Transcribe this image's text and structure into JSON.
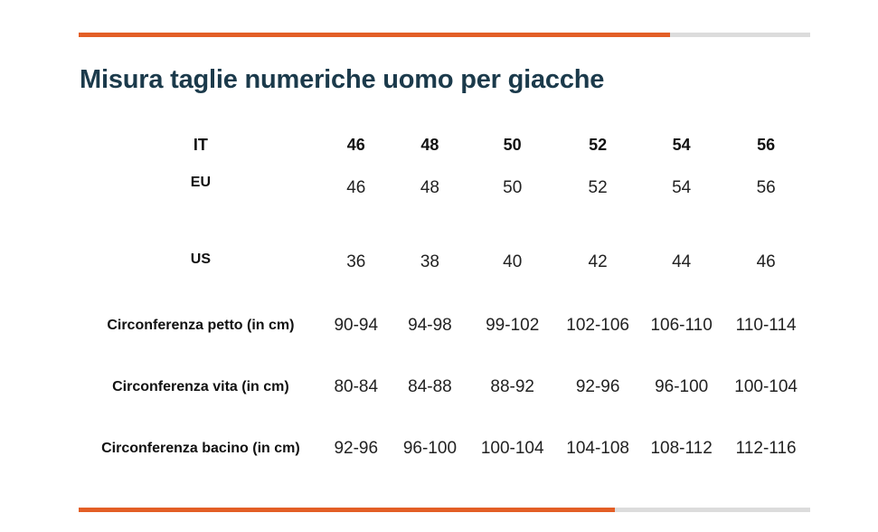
{
  "title": "Misura taglie numeriche uomo per giacche",
  "colors": {
    "accent": "#e35f26",
    "track": "#dcdcdc",
    "title": "#1b3a4b"
  },
  "scroll": {
    "top_position": 0.81,
    "bottom_position": 0.73
  },
  "table": {
    "header": {
      "label": "IT",
      "values": [
        "46",
        "48",
        "50",
        "52",
        "54",
        "56"
      ]
    },
    "rows": [
      {
        "label": "EU",
        "values": [
          "46",
          "48",
          "50",
          "52",
          "54",
          "56"
        ]
      },
      {
        "label": "US",
        "values": [
          "36",
          "38",
          "40",
          "42",
          "44",
          "46"
        ]
      },
      {
        "label": "Circonferenza petto (in cm)",
        "values": [
          "90-94",
          "94-98",
          "99-102",
          "102-106",
          "106-110",
          "110-114"
        ]
      },
      {
        "label": "Circonferenza vita (in cm)",
        "values": [
          "80-84",
          "84-88",
          "88-92",
          "92-96",
          "96-100",
          "100-104"
        ]
      },
      {
        "label": "Circonferenza bacino (in cm)",
        "values": [
          "92-96",
          "96-100",
          "100-104",
          "104-108",
          "108-112",
          "112-116"
        ]
      }
    ]
  }
}
